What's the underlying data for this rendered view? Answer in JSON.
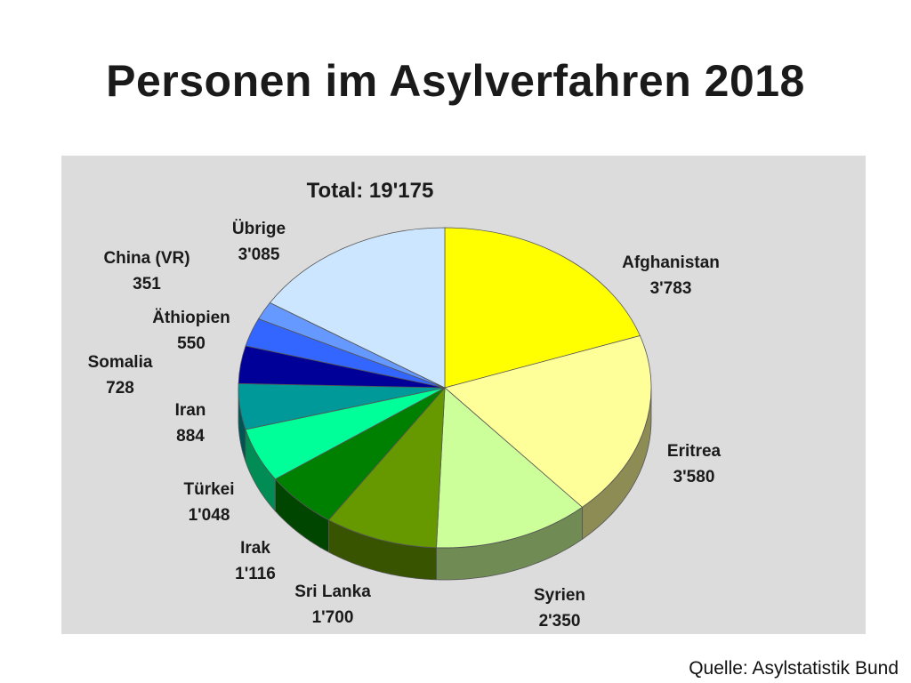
{
  "slide": {
    "title": "Personen im Asylverfahren 2018",
    "source": "Quelle: Asylstatistik Bund"
  },
  "chart_data": {
    "type": "pie",
    "title": "Total: 19'175",
    "total": 19175,
    "style": "3d-exploded-none",
    "slices": [
      {
        "name": "Afghanistan",
        "value": 3783,
        "value_label": "3'783",
        "color": "#ffff00"
      },
      {
        "name": "Eritrea",
        "value": 3580,
        "value_label": "3'580",
        "color": "#ffff99"
      },
      {
        "name": "Syrien",
        "value": 2350,
        "value_label": "2'350",
        "color": "#ccff99"
      },
      {
        "name": "Sri Lanka",
        "value": 1700,
        "value_label": "1'700",
        "color": "#669900"
      },
      {
        "name": "Irak",
        "value": 1116,
        "value_label": "1'116",
        "color": "#008000"
      },
      {
        "name": "Türkei",
        "value": 1048,
        "value_label": "1'048",
        "color": "#00ff99"
      },
      {
        "name": "Iran",
        "value": 884,
        "value_label": "884",
        "color": "#009999"
      },
      {
        "name": "Somalia",
        "value": 728,
        "value_label": "728",
        "color": "#000099"
      },
      {
        "name": "Äthiopien",
        "value": 550,
        "value_label": "550",
        "color": "#3366ff"
      },
      {
        "name": "China (VR)",
        "value": 351,
        "value_label": "351",
        "color": "#6699ff"
      },
      {
        "name": "Übrige",
        "value": 3085,
        "value_label": "3'085",
        "color": "#cce6ff"
      }
    ]
  }
}
